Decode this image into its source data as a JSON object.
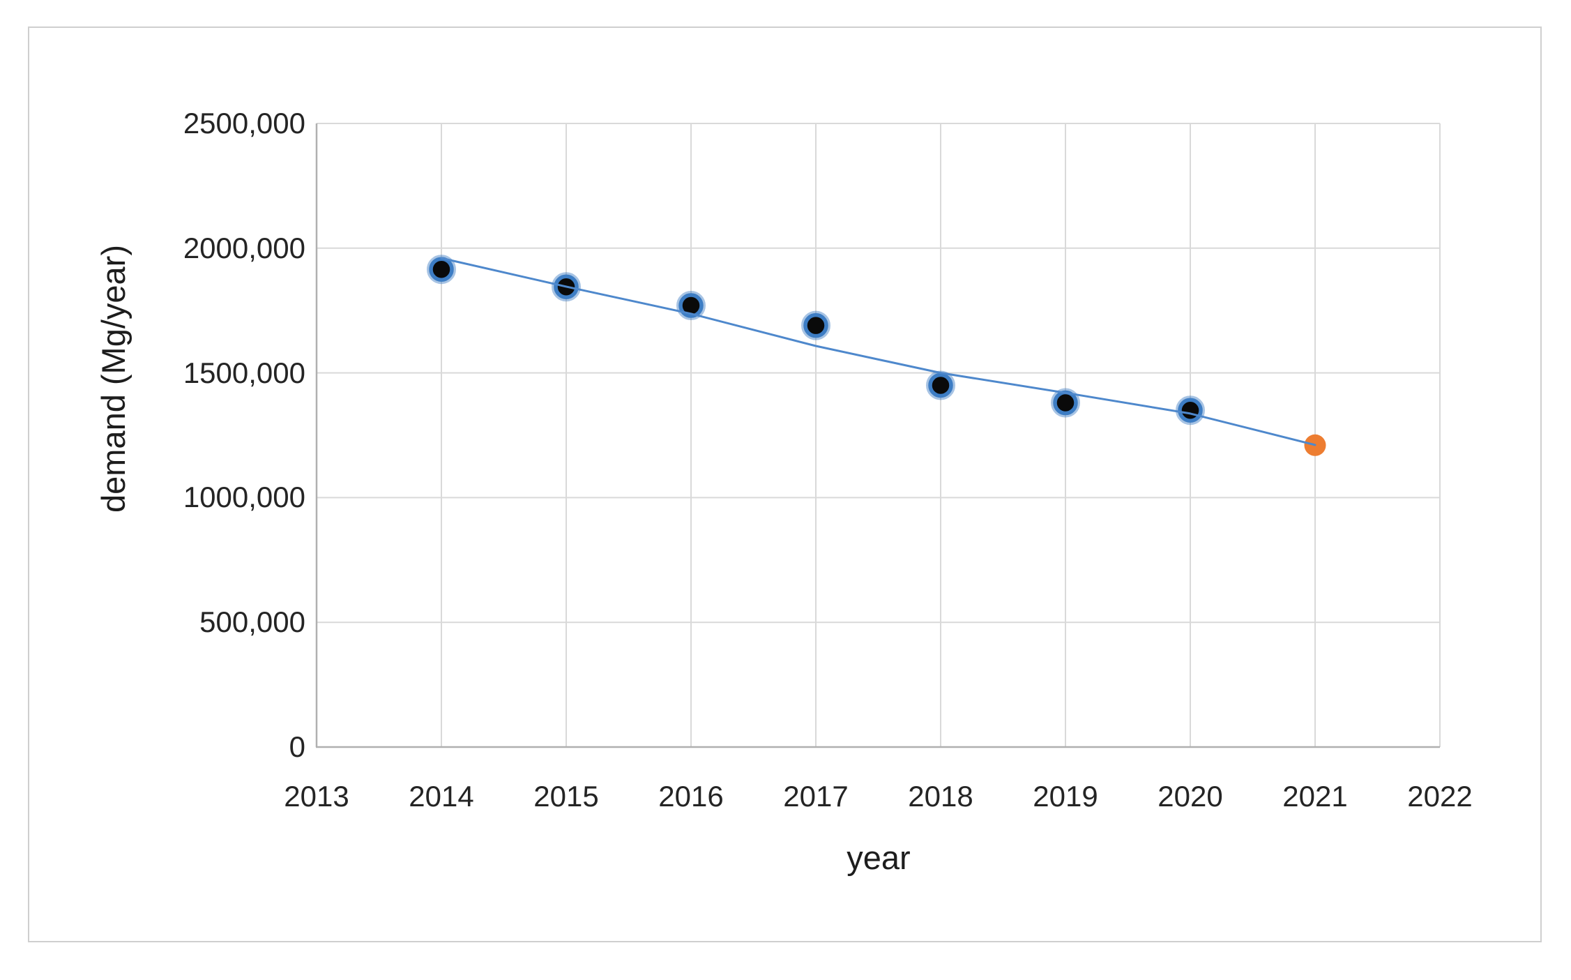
{
  "figure": {
    "background": "#ffffff",
    "border_color": "#cfcfcf",
    "gridline_color": "#d9d9d9",
    "axis_line_color": "#b0b0b0"
  },
  "chart_data": {
    "type": "scatter",
    "title": "",
    "xlabel": "year",
    "ylabel": "demand (Mg/year)",
    "xlim": [
      2013,
      2022
    ],
    "ylim": [
      0,
      2500000
    ],
    "grid": true,
    "legend": "none",
    "x_ticks": [
      2013,
      2014,
      2015,
      2016,
      2017,
      2018,
      2019,
      2020,
      2021,
      2022
    ],
    "x_tick_labels": [
      "2013",
      "2014",
      "2015",
      "2016",
      "2017",
      "2018",
      "2019",
      "2020",
      "2021",
      "2022"
    ],
    "y_ticks": [
      0,
      500000,
      1000000,
      1500000,
      2000000,
      2500000
    ],
    "y_tick_labels": [
      "0",
      "500,000",
      "1000,000",
      "1500,000",
      "2000,000",
      "2500,000"
    ],
    "series": [
      {
        "name": "observed demand",
        "type": "scatter",
        "marker": "black-circle-blue-ring",
        "fill_color": "#0a0a0a",
        "ring_color": "#3d7dc4",
        "x": [
          2014,
          2015,
          2016,
          2017,
          2018,
          2019,
          2020
        ],
        "y": [
          1915000,
          1845000,
          1770000,
          1690000,
          1450000,
          1380000,
          1350000
        ]
      },
      {
        "name": "forecast demand",
        "type": "scatter",
        "marker": "orange-circle",
        "fill_color": "#ed7d31",
        "x": [
          2021
        ],
        "y": [
          1210000
        ]
      },
      {
        "name": "trend line",
        "type": "line",
        "color": "#4e88cc",
        "x": [
          2014,
          2015,
          2016,
          2017,
          2018,
          2019,
          2020,
          2021
        ],
        "y": [
          1960000,
          1846000,
          1737000,
          1608000,
          1500000,
          1420000,
          1337000,
          1211000
        ]
      }
    ]
  }
}
